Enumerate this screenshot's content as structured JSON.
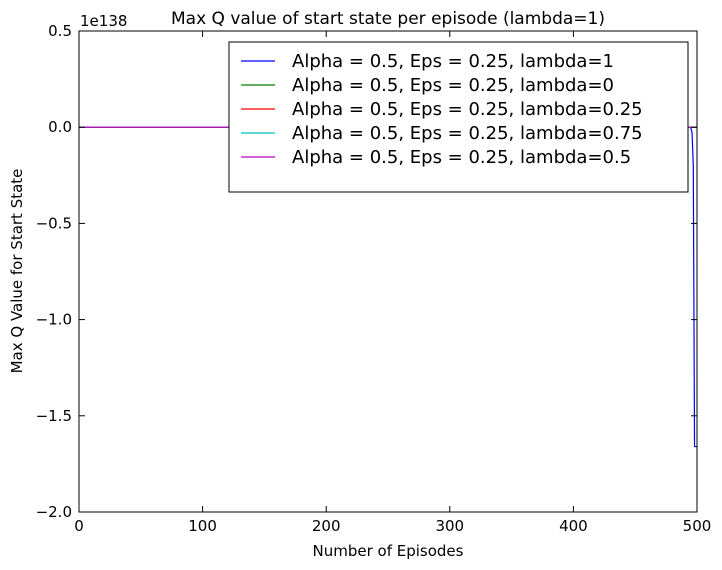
{
  "chart_data": {
    "type": "line",
    "title": "Max Q value of start state per episode (lambda=1)",
    "xlabel": "Number of Episodes",
    "ylabel": "Max Q Value for Start State",
    "y_offset_text": "1e138",
    "xlim": [
      0,
      500
    ],
    "ylim": [
      -2.0,
      0.5
    ],
    "x_ticks": [
      0,
      100,
      200,
      300,
      400,
      500
    ],
    "x_tick_labels": [
      "0",
      "100",
      "200",
      "300",
      "400",
      "500"
    ],
    "y_ticks": [
      0.5,
      0.0,
      -0.5,
      -1.0,
      -1.5,
      -2.0
    ],
    "y_tick_labels": [
      "0.5",
      "0.0",
      "−0.5",
      "−1.0",
      "−1.5",
      "−2.0"
    ],
    "grid": false,
    "legend_position": "top-right",
    "series": [
      {
        "name": "Alpha = 0.5, Eps = 0.25, lambda=1",
        "color": "#0000ff",
        "points": [
          [
            0,
            0
          ],
          [
            490,
            0
          ],
          [
            495,
            -0.002
          ],
          [
            496,
            -0.03
          ],
          [
            497,
            -0.2
          ],
          [
            498,
            -1.66
          ],
          [
            500,
            -1.66
          ]
        ]
      },
      {
        "name": "Alpha = 0.5, Eps = 0.25, lambda=0",
        "color": "#008000",
        "points": [
          [
            0,
            0
          ],
          [
            500,
            0
          ]
        ]
      },
      {
        "name": "Alpha = 0.5, Eps = 0.25, lambda=0.25",
        "color": "#ff0000",
        "points": [
          [
            0,
            0
          ],
          [
            500,
            0
          ]
        ]
      },
      {
        "name": "Alpha = 0.5, Eps = 0.25, lambda=0.75",
        "color": "#00bfbf",
        "points": [
          [
            0,
            0
          ],
          [
            500,
            0
          ]
        ]
      },
      {
        "name": "Alpha = 0.5, Eps = 0.25, lambda=0.5",
        "color": "#bf00bf",
        "points": [
          [
            0,
            0
          ],
          [
            500,
            0
          ]
        ]
      }
    ]
  }
}
